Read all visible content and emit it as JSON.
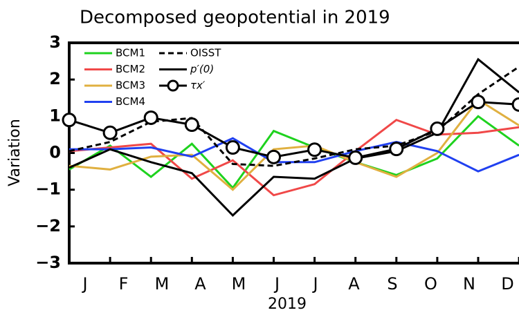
{
  "chart_data": {
    "type": "line",
    "title": "Decomposed geopotential in 2019",
    "x_label": "2019",
    "y_label": "Variation",
    "categories": [
      "J",
      "F",
      "M",
      "A",
      "M",
      "J",
      "J",
      "A",
      "S",
      "O",
      "N",
      "D"
    ],
    "ylim": [
      -3,
      3
    ],
    "yticks": [
      {
        "value": -3,
        "label": "−3"
      },
      {
        "value": -2,
        "label": "−2"
      },
      {
        "value": -1,
        "label": "−1"
      },
      0,
      1,
      2,
      3
    ],
    "series": [
      {
        "name": "BCM1",
        "color": "#1ed21e",
        "style": "solid",
        "values": [
          -0.45,
          0.2,
          -0.65,
          0.25,
          -0.95,
          0.6,
          0.15,
          -0.25,
          -0.6,
          -0.15,
          1.0,
          0.2
        ]
      },
      {
        "name": "BCM2",
        "color": "#f04848",
        "style": "solid",
        "values": [
          0.05,
          0.15,
          0.25,
          -0.7,
          -0.2,
          -1.15,
          -0.85,
          0.05,
          0.9,
          0.5,
          0.55,
          0.7
        ]
      },
      {
        "name": "BCM3",
        "color": "#e0b040",
        "style": "solid",
        "values": [
          -0.35,
          -0.45,
          -0.1,
          -0.05,
          -1.0,
          0.1,
          0.2,
          -0.25,
          -0.65,
          0.0,
          1.45,
          0.75
        ]
      },
      {
        "name": "BCM4",
        "color": "#2040f0",
        "style": "solid",
        "values": [
          0.1,
          0.1,
          0.15,
          -0.1,
          0.4,
          -0.25,
          -0.25,
          0.05,
          0.3,
          0.05,
          -0.5,
          -0.05
        ]
      },
      {
        "name": "OISST",
        "color": "#000000",
        "style": "dashed",
        "values": [
          0.05,
          0.3,
          0.85,
          0.95,
          -0.3,
          -0.35,
          -0.15,
          0.1,
          0.2,
          0.6,
          1.6,
          2.35
        ]
      },
      {
        "name": "p′(0)",
        "color": "#000000",
        "style": "solid",
        "values": [
          -0.4,
          0.1,
          -0.25,
          -0.55,
          -1.7,
          -0.65,
          -0.7,
          -0.15,
          0.05,
          0.55,
          2.55,
          1.65
        ]
      },
      {
        "name": "τx′",
        "color": "#000000",
        "style": "solid",
        "marker": "circle",
        "values": [
          0.9,
          0.55,
          0.96,
          0.77,
          0.15,
          -0.11,
          0.09,
          -0.13,
          0.11,
          0.66,
          1.39,
          1.32
        ]
      }
    ]
  }
}
